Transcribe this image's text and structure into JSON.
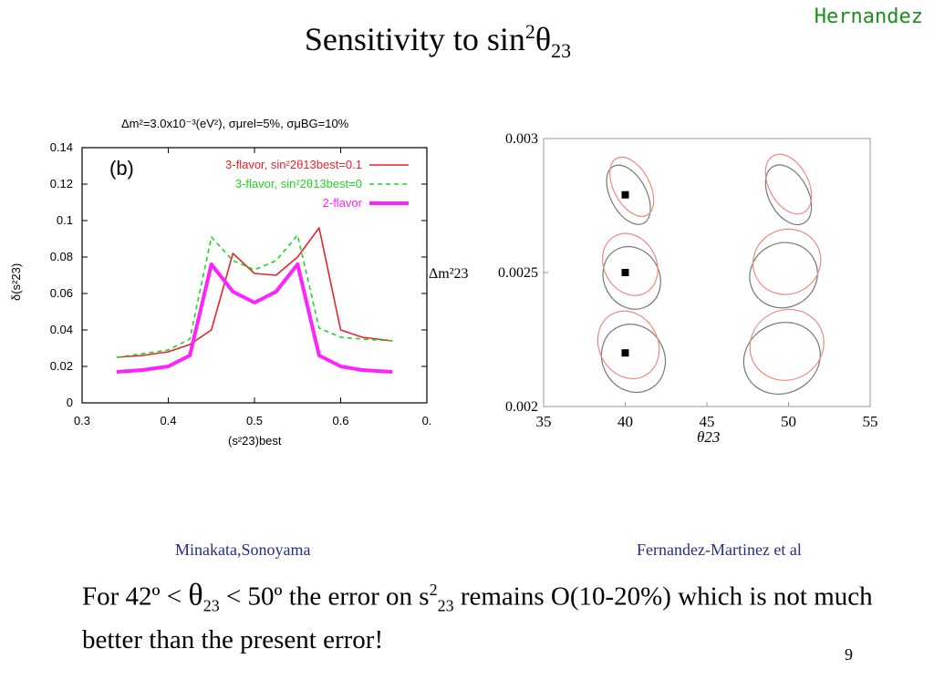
{
  "slide": {
    "author": "Hernandez",
    "title_prefix": "Sensitivity to sin",
    "title_sup": "2",
    "title_theta": "θ",
    "title_sub": "23",
    "credit_left": "Minakata,Sonoyama",
    "credit_right": "Fernandez-Martinez et al",
    "body": {
      "p1": "For 42º < ",
      "theta": "θ",
      "sub1": "23",
      "p2": " < 50º the error on s",
      "sup2": "2",
      "sub2": "23",
      "p3": "  remains O(10-20%) which is not much better than the present error!"
    },
    "page_number": "9"
  },
  "chart_data": [
    {
      "type": "line",
      "panel_label": "(b)",
      "title": "Δm²=3.0x10⁻³(eV²), σμrel=5%, σμBG=10%",
      "xlabel": "(s²23)best",
      "ylabel": "δ(s²23)",
      "xlim": [
        0.3,
        0.7
      ],
      "ylim": [
        0,
        0.14
      ],
      "xticks": [
        "0.3",
        "0.4",
        "0.5",
        "0.6",
        "0."
      ],
      "yticks": [
        "0",
        "0.02",
        "0.04",
        "0.06",
        "0.08",
        "0.1",
        "0.12",
        "0.14"
      ],
      "legend_position": "top-right",
      "x": [
        0.34,
        0.37,
        0.4,
        0.425,
        0.45,
        0.475,
        0.5,
        0.525,
        0.55,
        0.575,
        0.6,
        0.625,
        0.66
      ],
      "series": [
        {
          "name": "3-flavor, sin²2θ13best=0.1",
          "color": "#e8242b",
          "style": "solid",
          "values": [
            0.025,
            0.026,
            0.028,
            0.032,
            0.04,
            0.082,
            0.071,
            0.07,
            0.08,
            0.096,
            0.04,
            0.036,
            0.034
          ]
        },
        {
          "name": "3-flavor, sin²2θ13best=0",
          "color": "#22d422",
          "style": "dashed",
          "values": [
            0.025,
            0.027,
            0.029,
            0.035,
            0.091,
            0.078,
            0.073,
            0.078,
            0.092,
            0.041,
            0.036,
            0.035,
            0.034
          ]
        },
        {
          "name": "2-flavor",
          "color": "#ff22ff",
          "style": "thick",
          "values": [
            0.017,
            0.018,
            0.02,
            0.026,
            0.076,
            0.061,
            0.055,
            0.061,
            0.076,
            0.026,
            0.02,
            0.018,
            0.017
          ]
        }
      ]
    },
    {
      "type": "scatter",
      "xlabel": "θ23",
      "ylabel": "Δm²23",
      "xlim": [
        35,
        55
      ],
      "ylim": [
        0.002,
        0.003
      ],
      "xticks": [
        "35",
        "40",
        "45",
        "50",
        "55"
      ],
      "yticks": [
        "0.002",
        "0.0025",
        "0.003"
      ],
      "points": [
        {
          "x": 40,
          "y": 0.00279
        },
        {
          "x": 40,
          "y": 0.0025
        },
        {
          "x": 40,
          "y": 0.0022
        }
      ],
      "contours": [
        {
          "cx": 40.2,
          "cy": 0.00279,
          "rx": 1.1,
          "ry": 0.00012,
          "color": "#777777"
        },
        {
          "cx": 40.4,
          "cy": 0.00282,
          "rx": 1.1,
          "ry": 0.00012,
          "color": "#f08a80"
        },
        {
          "cx": 40.4,
          "cy": 0.00248,
          "rx": 1.7,
          "ry": 0.00012,
          "color": "#777777"
        },
        {
          "cx": 40.3,
          "cy": 0.00253,
          "rx": 1.6,
          "ry": 0.00012,
          "color": "#f08a80"
        },
        {
          "cx": 40.5,
          "cy": 0.00218,
          "rx": 1.9,
          "ry": 0.00013,
          "color": "#777777"
        },
        {
          "cx": 40.2,
          "cy": 0.00223,
          "rx": 1.8,
          "ry": 0.00013,
          "color": "#f08a80"
        },
        {
          "cx": 50.0,
          "cy": 0.00279,
          "rx": 1.2,
          "ry": 0.00012,
          "color": "#777777"
        },
        {
          "cx": 50.0,
          "cy": 0.00283,
          "rx": 1.2,
          "ry": 0.00012,
          "color": "#f08a80"
        },
        {
          "cx": 49.7,
          "cy": 0.00249,
          "rx": 2.1,
          "ry": 0.00012,
          "color": "#777777"
        },
        {
          "cx": 49.9,
          "cy": 0.00254,
          "rx": 2.1,
          "ry": 0.00012,
          "color": "#f08a80"
        },
        {
          "cx": 49.6,
          "cy": 0.00218,
          "rx": 2.4,
          "ry": 0.00013,
          "color": "#777777"
        },
        {
          "cx": 49.9,
          "cy": 0.00223,
          "rx": 2.3,
          "ry": 0.00013,
          "color": "#f08a80"
        }
      ]
    }
  ]
}
